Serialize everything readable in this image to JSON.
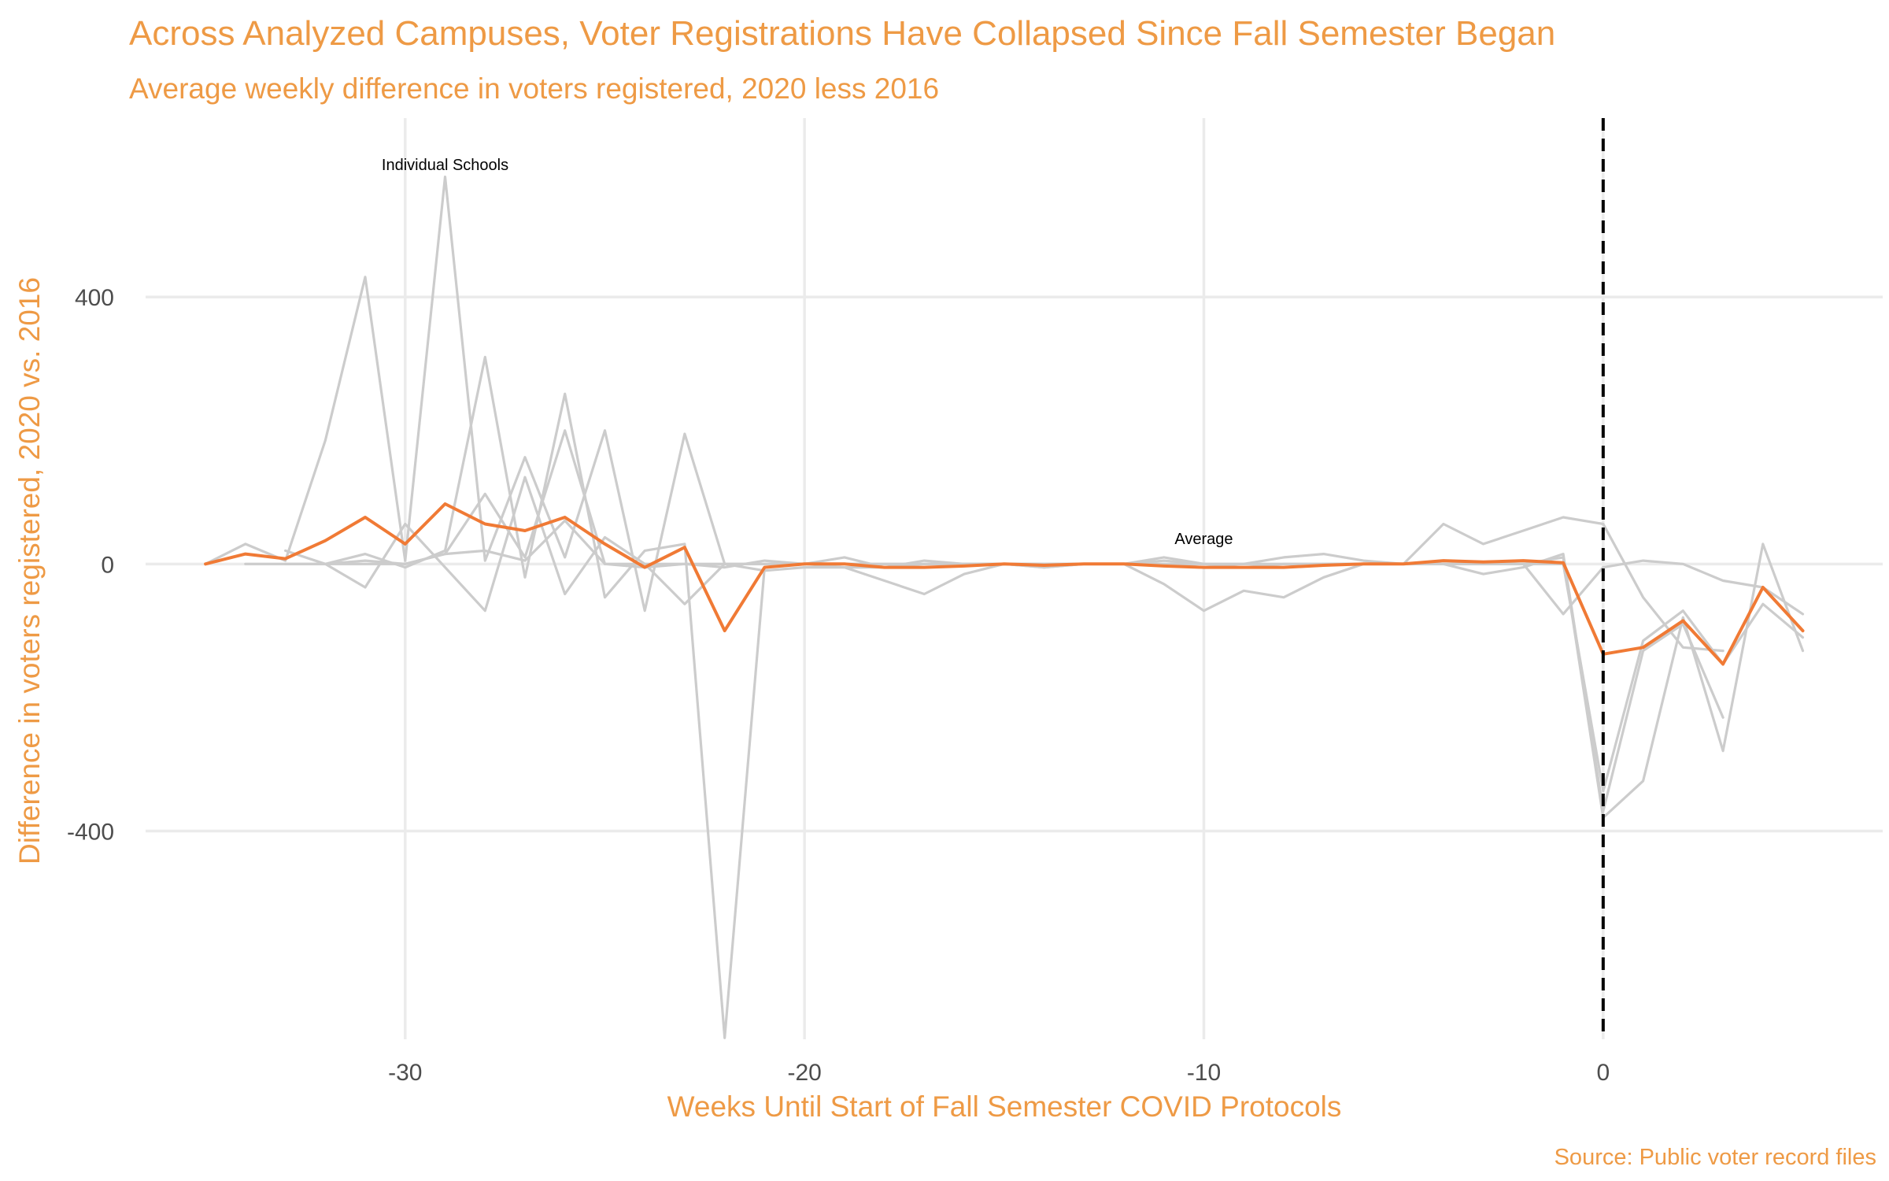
{
  "chart_data": {
    "type": "line",
    "title": "Across Analyzed Campuses, Voter Registrations Have Collapsed Since Fall Semester Began",
    "subtitle": "Average weekly difference in voters registered, 2020 less 2016",
    "xlabel": "Weeks Until Start of Fall Semester COVID Protocols",
    "ylabel": "Difference in voters registered, 2020 vs. 2016",
    "caption": "Source: Public voter record files",
    "xlim": [
      -36.5,
      7
    ],
    "ylim": [
      -712,
      668
    ],
    "x_ticks": [
      -30,
      -20,
      -10,
      0
    ],
    "x_tick_labels": [
      "-30",
      "-20",
      "-10",
      "0"
    ],
    "y_ticks": [
      -400,
      0,
      400
    ],
    "y_tick_labels": [
      "-400",
      "0",
      "400"
    ],
    "grid": true,
    "legend": "none",
    "vline": {
      "x": 0,
      "style": "dashed",
      "color": "#000000"
    },
    "annotations": [
      {
        "text": "Individual Schools",
        "x": -29,
        "y": 590
      },
      {
        "text": "Average",
        "x": -10,
        "y": 30
      }
    ],
    "colors": {
      "schools": "#CCCCCC",
      "average": "#F07A35",
      "title": "#EE9A45"
    },
    "series": [
      {
        "role": "school",
        "x": [
          -35,
          -34,
          -33,
          -32,
          -31,
          -30,
          -29,
          -28,
          -27,
          -26,
          -25,
          -24,
          -23,
          -22,
          -21,
          -20,
          -19,
          -18,
          -17,
          -16,
          -15,
          -14,
          -13,
          -12,
          -11,
          -10,
          -9,
          -8,
          -7,
          -6,
          -5,
          -4,
          -3,
          -2,
          -1,
          0,
          1,
          2,
          3,
          4,
          5
        ],
        "y": [
          0,
          30,
          5,
          185,
          430,
          5,
          580,
          5,
          160,
          10,
          200,
          -70,
          195,
          0,
          -10,
          -5,
          -5,
          -5,
          0,
          0,
          0,
          0,
          0,
          0,
          0,
          -5,
          -5,
          -5,
          0,
          0,
          0,
          0,
          0,
          0,
          10,
          -380,
          -325,
          -80,
          -280,
          30,
          -130
        ]
      },
      {
        "role": "school",
        "x": [
          -34,
          -33,
          -32,
          -31,
          -30,
          -29,
          -28,
          -27,
          -26,
          -25,
          -24,
          -23,
          -22,
          -21,
          -20,
          -19,
          -18,
          -17,
          -16,
          -15,
          -14,
          -13,
          -12,
          -11,
          -10,
          -9,
          -8,
          -7,
          -6,
          -5,
          -4,
          -3,
          -2,
          -1,
          0,
          1,
          2,
          3
        ],
        "y": [
          0,
          0,
          0,
          15,
          -5,
          20,
          310,
          -20,
          255,
          -50,
          20,
          30,
          -710,
          -5,
          0,
          10,
          -5,
          5,
          0,
          0,
          -5,
          0,
          0,
          10,
          0,
          -5,
          0,
          0,
          0,
          0,
          0,
          -15,
          -5,
          15,
          -370,
          -130,
          -90,
          -230
        ]
      },
      {
        "role": "school",
        "x": [
          -33,
          -32,
          -31,
          -30,
          -29,
          -28,
          -27,
          -26,
          -25,
          -24,
          -23,
          -22,
          -21,
          -20,
          -19,
          -18,
          -17,
          -16,
          -15,
          -14,
          -13,
          -12,
          -11,
          -10,
          -9,
          -8,
          -7,
          -6,
          -5,
          -4,
          -3,
          -2,
          -1,
          0,
          1,
          2,
          3
        ],
        "y": [
          20,
          0,
          -35,
          60,
          -5,
          -70,
          130,
          -45,
          40,
          0,
          -60,
          0,
          0,
          0,
          -5,
          -25,
          -45,
          -15,
          0,
          -5,
          0,
          0,
          -30,
          -70,
          -40,
          -50,
          -20,
          0,
          0,
          60,
          30,
          50,
          70,
          60,
          -50,
          -125,
          -130
        ]
      },
      {
        "role": "school",
        "x": [
          -32,
          -31,
          -30,
          -29,
          -28,
          -27,
          -26,
          -25,
          -24,
          -23,
          -22,
          -21,
          -20,
          -19,
          -18,
          -17,
          -16,
          -15,
          -14,
          -13,
          -12,
          -11,
          -10,
          -9,
          -8,
          -7,
          -6,
          -5,
          -4,
          -3,
          -2,
          -1,
          0,
          1,
          2,
          3,
          4,
          5
        ],
        "y": [
          0,
          5,
          0,
          15,
          105,
          10,
          200,
          0,
          -5,
          0,
          -5,
          5,
          0,
          0,
          0,
          0,
          0,
          0,
          0,
          0,
          0,
          5,
          0,
          0,
          10,
          15,
          5,
          0,
          0,
          0,
          0,
          -75,
          -5,
          5,
          0,
          -25,
          -35,
          -75
        ]
      },
      {
        "role": "school",
        "x": [
          -33,
          -32,
          -31,
          -30,
          -29,
          -28,
          -27,
          -26,
          -25,
          -24,
          -23,
          -22,
          -21,
          -20,
          -19,
          -18,
          -17,
          -16,
          -15,
          -14,
          -13,
          -12,
          -11,
          -10,
          -9,
          -8,
          -7,
          -6,
          -5,
          -4,
          -3,
          -2,
          -1,
          0,
          1,
          2,
          3,
          4,
          5
        ],
        "y": [
          0,
          0,
          0,
          0,
          15,
          20,
          5,
          65,
          0,
          0,
          0,
          0,
          0,
          0,
          0,
          0,
          0,
          0,
          0,
          0,
          0,
          0,
          0,
          0,
          0,
          0,
          0,
          0,
          0,
          0,
          0,
          0,
          0,
          -340,
          -115,
          -70,
          -150,
          -60,
          -110
        ]
      },
      {
        "role": "average",
        "name": "Average",
        "x": [
          -35,
          -34,
          -33,
          -32,
          -31,
          -30,
          -29,
          -28,
          -27,
          -26,
          -25,
          -24,
          -23,
          -22,
          -21,
          -20,
          -19,
          -18,
          -17,
          -16,
          -15,
          -14,
          -13,
          -12,
          -11,
          -10,
          -9,
          -8,
          -7,
          -6,
          -5,
          -4,
          -3,
          -2,
          -1,
          0,
          1,
          2,
          3,
          4,
          5
        ],
        "y": [
          0,
          15,
          8,
          35,
          70,
          30,
          90,
          60,
          50,
          70,
          30,
          -5,
          25,
          -100,
          -5,
          0,
          0,
          -5,
          -5,
          -3,
          0,
          -2,
          0,
          0,
          -3,
          -5,
          -5,
          -5,
          -2,
          0,
          0,
          5,
          3,
          5,
          2,
          -135,
          -125,
          -85,
          -150,
          -35,
          -100
        ]
      }
    ]
  }
}
